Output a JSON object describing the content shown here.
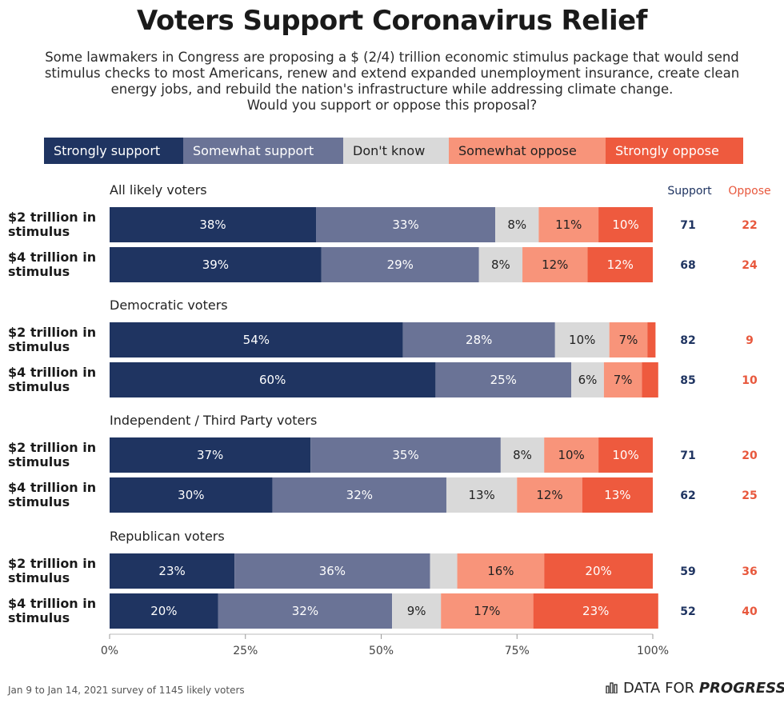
{
  "title": "Voters Support Coronavirus Relief",
  "subtitle_lines": [
    "Some lawmakers in Congress are proposing a $ (2/4) trillion economic stimulus package that would send",
    "stimulus checks to most Americans, renew and extend expanded unemployment insurance, create clean",
    "energy jobs, and rebuild the nation's infrastructure while addressing climate change.",
    "Would you support or oppose this proposal?"
  ],
  "colors": {
    "strongly_support": "#1f3461",
    "somewhat_support": "#6a7396",
    "dont_know": "#d9d9d9",
    "somewhat_oppose": "#f8947a",
    "strongly_oppose": "#ee5a3e",
    "support_text": "#1f3461",
    "oppose_text": "#e8583d"
  },
  "summary_headers": {
    "support": "Support",
    "oppose": "Oppose"
  },
  "chart_data": {
    "type": "bar",
    "orientation": "horizontal-stacked",
    "series": [
      {
        "name": "Strongly support"
      },
      {
        "name": "Somewhat support"
      },
      {
        "name": "Don't know"
      },
      {
        "name": "Somewhat oppose"
      },
      {
        "name": "Strongly oppose"
      }
    ],
    "groups": [
      {
        "name": "All likely voters",
        "rows": [
          {
            "label": "$2 trillion in stimulus",
            "values": [
              38,
              33,
              8,
              11,
              10
            ],
            "labels": [
              "38%",
              "33%",
              "8%",
              "11%",
              "10%"
            ],
            "support": "71",
            "oppose": "22"
          },
          {
            "label": "$4 trillion in stimulus",
            "values": [
              39,
              29,
              8,
              12,
              12
            ],
            "labels": [
              "39%",
              "29%",
              "8%",
              "12%",
              "12%"
            ],
            "support": "68",
            "oppose": "24"
          }
        ]
      },
      {
        "name": "Democratic voters",
        "rows": [
          {
            "label": "$2 trillion in stimulus",
            "values": [
              54,
              28,
              10,
              7,
              1.5
            ],
            "labels": [
              "54%",
              "28%",
              "10%",
              "7%",
              ""
            ],
            "support": "82",
            "oppose": "9"
          },
          {
            "label": "$4 trillion in stimulus",
            "values": [
              60,
              25,
              6,
              7,
              3
            ],
            "labels": [
              "60%",
              "25%",
              "6%",
              "7%",
              ""
            ],
            "support": "85",
            "oppose": "10"
          }
        ]
      },
      {
        "name": "Independent / Third Party voters",
        "rows": [
          {
            "label": "$2 trillion in stimulus",
            "values": [
              37,
              35,
              8,
              10,
              10
            ],
            "labels": [
              "37%",
              "35%",
              "8%",
              "10%",
              "10%"
            ],
            "support": "71",
            "oppose": "20"
          },
          {
            "label": "$4 trillion in stimulus",
            "values": [
              30,
              32,
              13,
              12,
              13
            ],
            "labels": [
              "30%",
              "32%",
              "13%",
              "12%",
              "13%"
            ],
            "support": "62",
            "oppose": "25"
          }
        ]
      },
      {
        "name": "Republican voters",
        "rows": [
          {
            "label": "$2 trillion in stimulus",
            "values": [
              23,
              36,
              5,
              16,
              20
            ],
            "labels": [
              "23%",
              "36%",
              "",
              "16%",
              "20%"
            ],
            "support": "59",
            "oppose": "36"
          },
          {
            "label": "$4 trillion in stimulus",
            "values": [
              20,
              32,
              9,
              17,
              23
            ],
            "labels": [
              "20%",
              "32%",
              "9%",
              "17%",
              "23%"
            ],
            "support": "52",
            "oppose": "40"
          }
        ]
      }
    ],
    "x_ticks": [
      "0%",
      "25%",
      "50%",
      "75%",
      "100%"
    ],
    "xlim": [
      0,
      100
    ]
  },
  "footer": {
    "source": "Jan 9 to Jan 14, 2021 survey of 1145 likely voters",
    "brand_plain": "DATA FOR",
    "brand_bold": "PROGRESS"
  }
}
